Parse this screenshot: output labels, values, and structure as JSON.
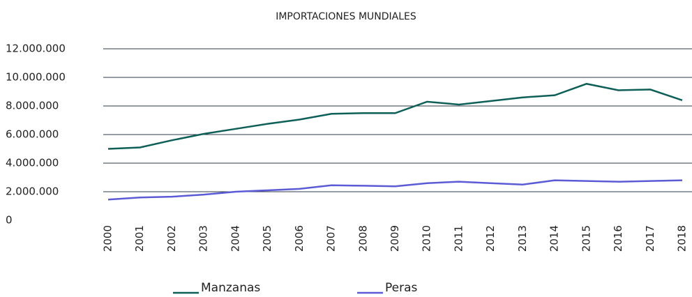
{
  "chart_data": {
    "type": "line",
    "title": "IMPORTACIONES MUNDIALES",
    "categories": [
      "2000",
      "2001",
      "2002",
      "2003",
      "2004",
      "2005",
      "2006",
      "2007",
      "2008",
      "2009",
      "2010",
      "2011",
      "2012",
      "2013",
      "2014",
      "2015",
      "2016",
      "2017",
      "2018"
    ],
    "series": [
      {
        "name": "Manzanas",
        "color": "#0e5f57",
        "values": [
          5000000,
          5100000,
          5600000,
          6050000,
          6400000,
          6750000,
          7050000,
          7450000,
          7500000,
          7500000,
          8300000,
          8100000,
          8350000,
          8600000,
          8750000,
          9550000,
          9100000,
          9150000,
          8400000
        ]
      },
      {
        "name": "Peras",
        "color": "#5b5bd6",
        "values": [
          1450000,
          1600000,
          1650000,
          1800000,
          2000000,
          2100000,
          2200000,
          2450000,
          2420000,
          2380000,
          2600000,
          2700000,
          2600000,
          2500000,
          2800000,
          2750000,
          2700000,
          2750000,
          2800000
        ]
      }
    ],
    "ylim": [
      0,
      12000000
    ],
    "yticks": [
      0,
      {
        "value": 2000000,
        "label": "2.000.000"
      },
      {
        "value": 4000000,
        "label": "4.000.000"
      },
      {
        "value": 6000000,
        "label": "6.000.000"
      },
      {
        "value": 8000000,
        "label": "8.000.000"
      },
      {
        "value": 10000000,
        "label": "10.000.000"
      },
      {
        "value": 12000000,
        "label": "12.000.000"
      }
    ],
    "grid": true,
    "legend": "bottom"
  }
}
